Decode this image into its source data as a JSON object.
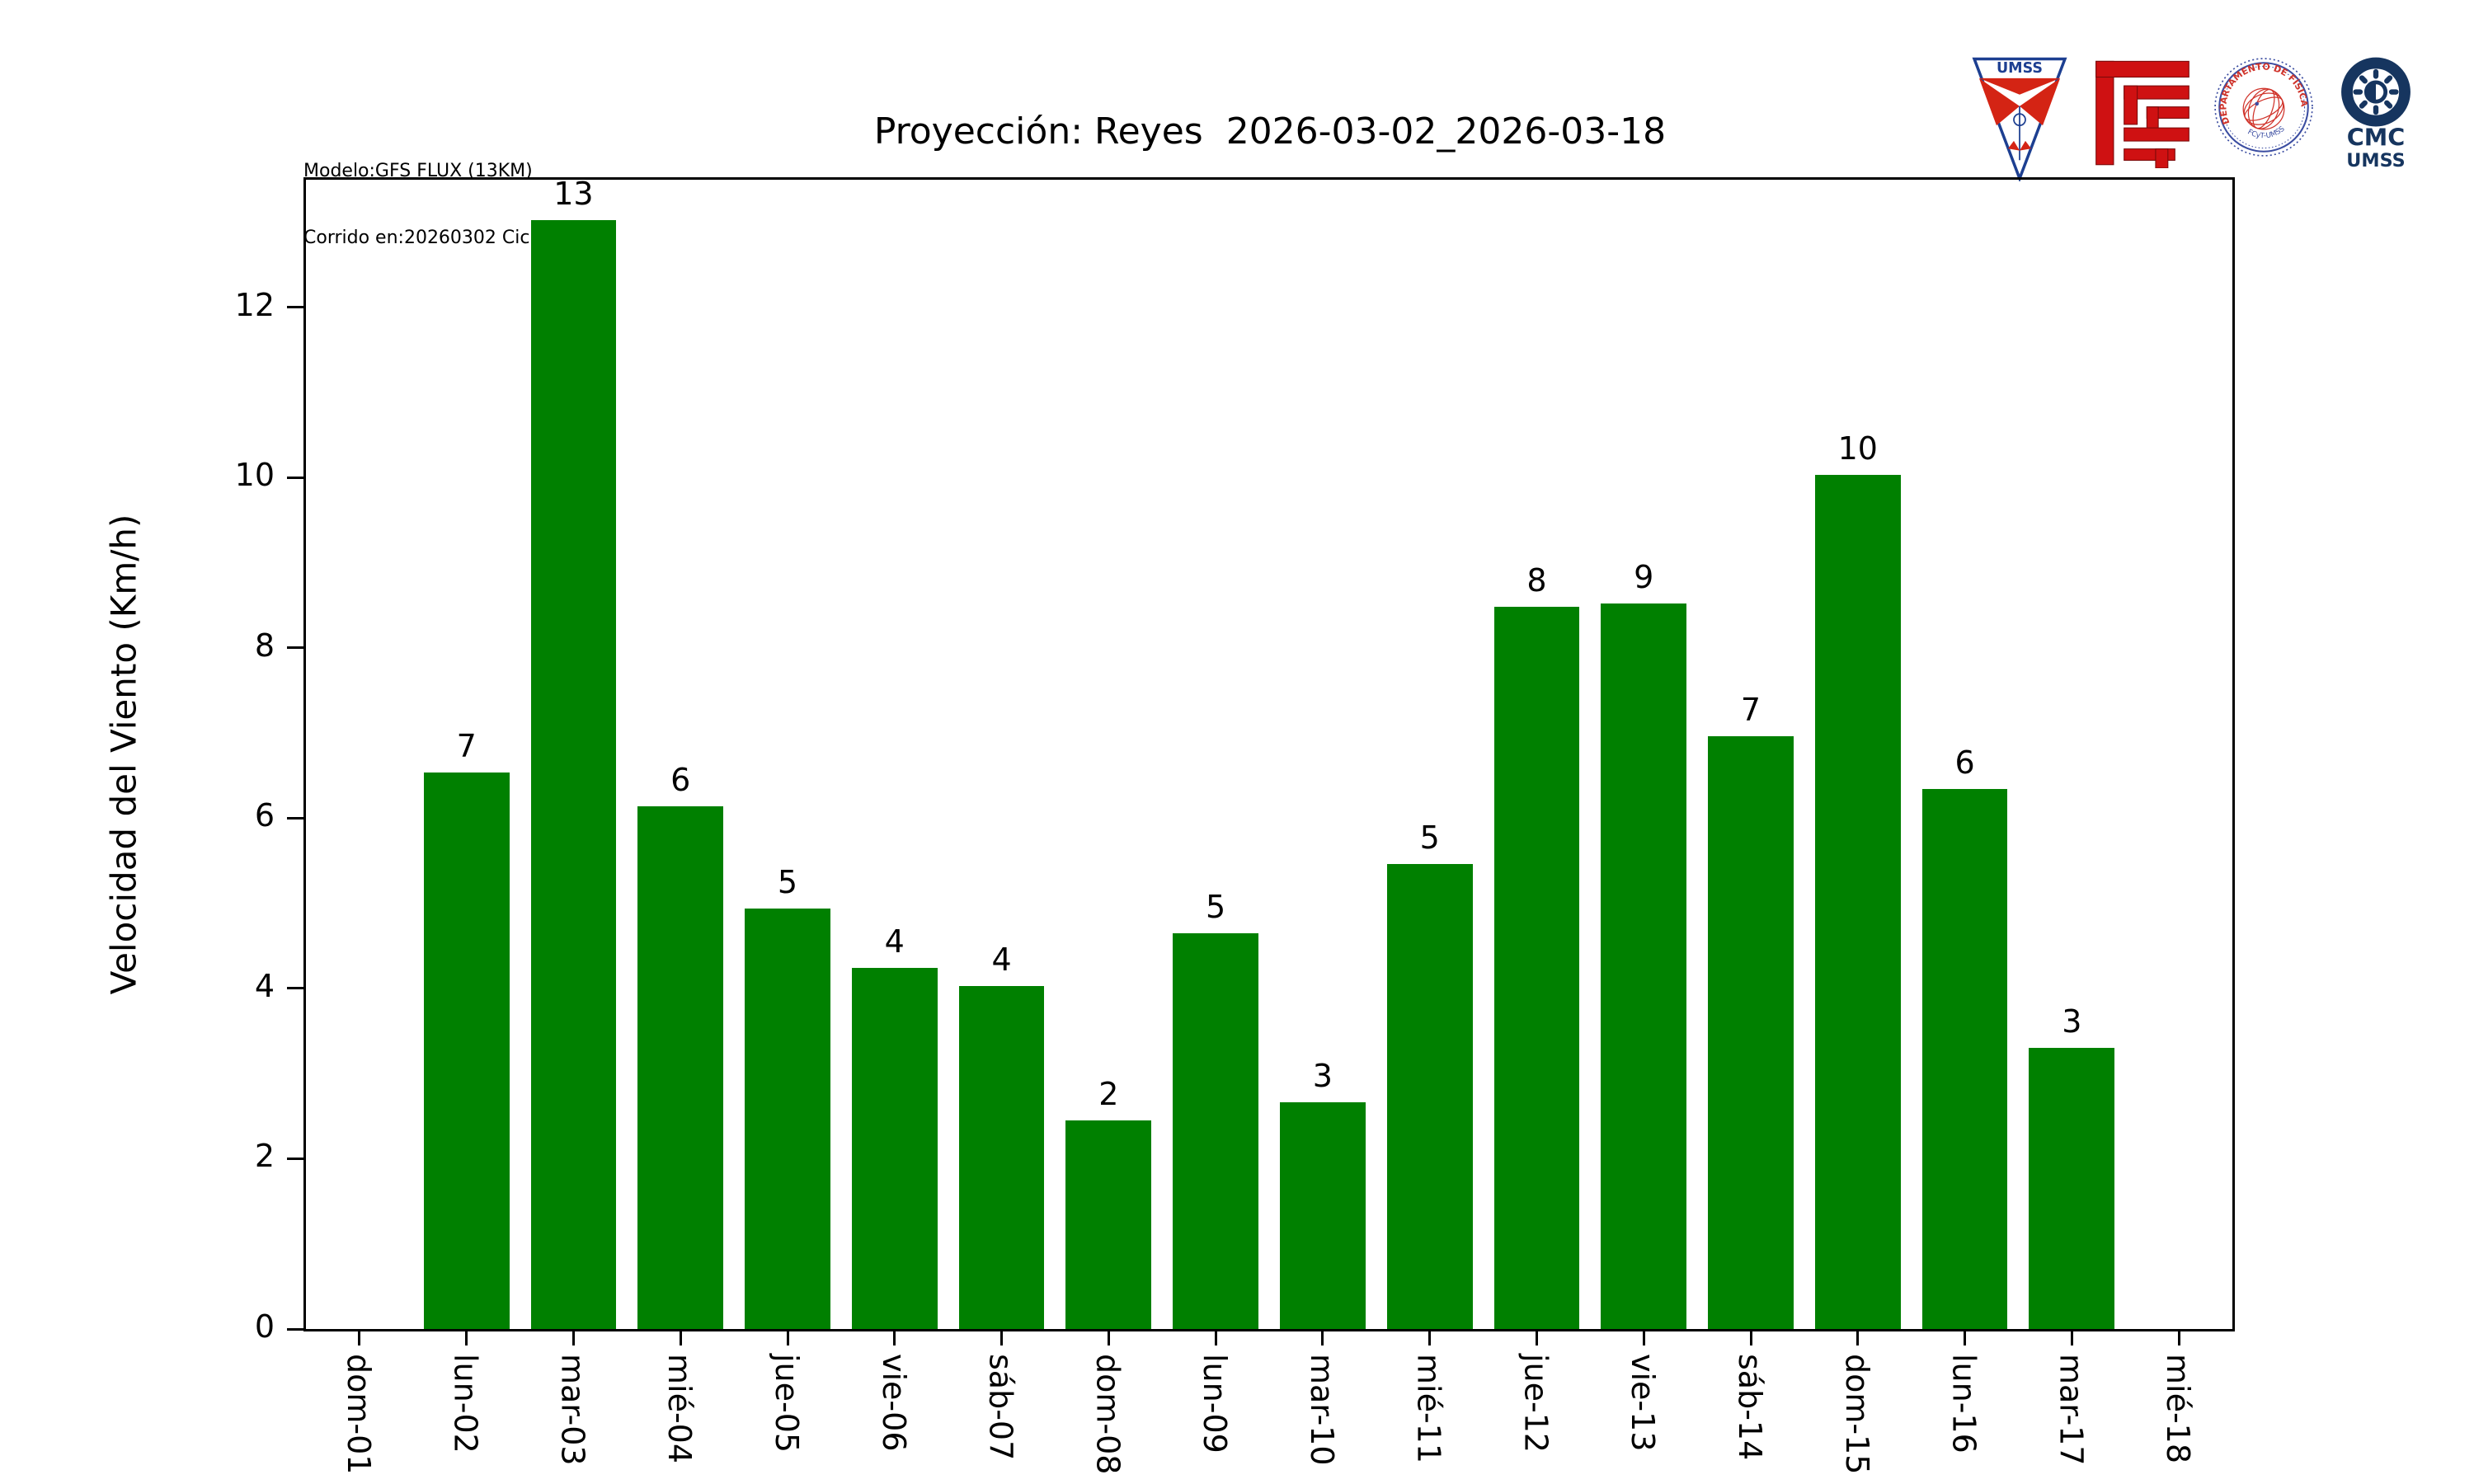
{
  "page": {
    "background": "#ffffff"
  },
  "header": {
    "model_info": {
      "line1": "Modelo:GFS FLUX (13KM)",
      "line2": "Corrido en:20260302 Ciclo:00"
    },
    "title": "Proyección: Reyes  2026-03-02_2026-03-18",
    "logos": [
      {
        "id": "umss-pennant",
        "text": "UMSS",
        "primary": "#1d3f91",
        "secondary": "#d42414"
      },
      {
        "id": "fcyt-monogram",
        "primary": "#cf1112"
      },
      {
        "id": "fisica-seal",
        "text_top": "DEPARTAMENTO DE FÍSICA",
        "text_bottom": "FCyT-UMSS",
        "ring": "#3b4da1",
        "art": "#d0332a"
      },
      {
        "id": "cmc-umss",
        "line1": "CMC",
        "line2": "UMSS",
        "primary": "#16355f"
      }
    ]
  },
  "chart_data": {
    "type": "bar",
    "title": "Proyección: Reyes  2026-03-02_2026-03-18",
    "xlabel": "",
    "ylabel": "Velocidad del Viento (Km/h)",
    "categories": [
      "dom-01",
      "lun-02",
      "mar-03",
      "mié-04",
      "jue-05",
      "vie-06",
      "sáb-07",
      "dom-08",
      "lun-09",
      "mar-10",
      "mié-11",
      "jue-12",
      "vie-13",
      "sáb-14",
      "dom-15",
      "lun-16",
      "mar-17",
      "mié-18"
    ],
    "values": [
      0,
      6.54,
      13.03,
      6.14,
      4.94,
      4.24,
      4.03,
      2.45,
      4.65,
      2.66,
      5.46,
      8.48,
      8.52,
      6.96,
      10.03,
      6.34,
      3.3,
      0
    ],
    "bar_labels": [
      "",
      "7",
      "13",
      "6",
      "5",
      "4",
      "4",
      "2",
      "5",
      "3",
      "5",
      "8",
      "9",
      "7",
      "10",
      "6",
      "3",
      ""
    ],
    "bar_color": "#008000",
    "ylim": [
      0,
      13.5
    ],
    "yticks": [
      0,
      2,
      4,
      6,
      8,
      10,
      12
    ],
    "grid": false,
    "legend": null,
    "x_tick_rotation": "vertical"
  }
}
